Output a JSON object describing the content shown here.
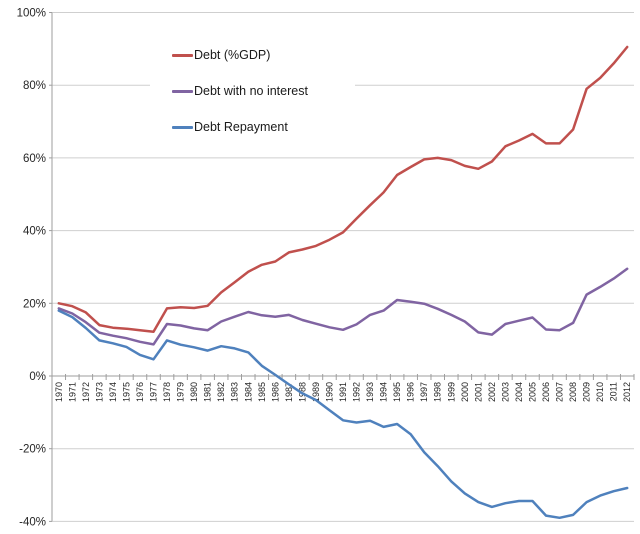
{
  "colors": {
    "gridline": "#CFCFCF",
    "axis_line": "#9E9E9E",
    "tick_text": "#262626",
    "background": "#FFFFFF"
  },
  "chart_data": {
    "type": "line",
    "grid": true,
    "legend_position": "inside-top-left",
    "x_tick_rotation_degrees": -90,
    "years": [
      "1970",
      "1971",
      "1972",
      "1973",
      "1974",
      "1975",
      "1976",
      "1977",
      "1978",
      "1979",
      "1980",
      "1981",
      "1982",
      "1983",
      "1984",
      "1985",
      "1986",
      "1987",
      "1988",
      "1989",
      "1990",
      "1991",
      "1992",
      "1993",
      "1994",
      "1995",
      "1996",
      "1997",
      "1998",
      "1999",
      "2000",
      "2001",
      "2002",
      "2003",
      "2004",
      "2005",
      "2006",
      "2007",
      "2008",
      "2009",
      "2010",
      "2011",
      "2012"
    ],
    "y_axis": {
      "min": -40,
      "max": 100,
      "step": 20,
      "tick_values": [
        100,
        80,
        60,
        40,
        20,
        0,
        -20,
        -40
      ],
      "tick_labels": [
        "100%",
        "80%",
        "60%",
        "40%",
        "20%",
        "0%",
        "-20%",
        "-40%"
      ]
    },
    "series": [
      {
        "name": "Debt (%GDP)",
        "color": "#C0504D",
        "values": [
          20.0,
          19.2,
          17.5,
          14.0,
          13.3,
          13.0,
          12.6,
          12.2,
          18.6,
          18.9,
          18.7,
          19.3,
          23.0,
          25.8,
          28.7,
          30.6,
          31.5,
          34.0,
          34.8,
          35.8,
          37.5,
          39.5,
          43.3,
          47.0,
          50.5,
          55.3,
          57.5,
          59.6,
          60.0,
          59.4,
          57.8,
          57.0,
          59.0,
          63.2,
          64.8,
          66.6,
          64.0,
          64.0,
          67.8,
          79.0,
          82.0,
          86.0,
          90.5
        ]
      },
      {
        "name": "Debt with no interest",
        "color": "#8064A2",
        "values": [
          18.6,
          17.2,
          14.8,
          11.9,
          11.1,
          10.4,
          9.4,
          8.7,
          14.3,
          13.9,
          13.1,
          12.6,
          15.0,
          16.3,
          17.6,
          16.7,
          16.3,
          16.8,
          15.4,
          14.4,
          13.4,
          12.7,
          14.2,
          16.8,
          18.0,
          20.9,
          20.4,
          19.9,
          18.5,
          16.8,
          15.0,
          12.0,
          11.4,
          14.3,
          15.2,
          16.1,
          12.8,
          12.6,
          14.6,
          22.4,
          24.5,
          26.8,
          29.5
        ]
      },
      {
        "name": "Debt Repayment",
        "color": "#4F81BD",
        "values": [
          18.0,
          16.2,
          13.2,
          9.8,
          9.0,
          8.0,
          5.8,
          4.6,
          9.8,
          8.6,
          7.9,
          7.0,
          8.2,
          7.6,
          6.5,
          2.8,
          0.3,
          -2.3,
          -4.8,
          -6.6,
          -9.4,
          -12.2,
          -12.8,
          -12.3,
          -14.0,
          -13.2,
          -16.0,
          -21.0,
          -24.8,
          -29.0,
          -32.3,
          -34.7,
          -36.0,
          -35.0,
          -34.4,
          -34.4,
          -38.4,
          -39.0,
          -38.2,
          -34.7,
          -32.9,
          -31.7,
          -30.8
        ]
      }
    ]
  }
}
